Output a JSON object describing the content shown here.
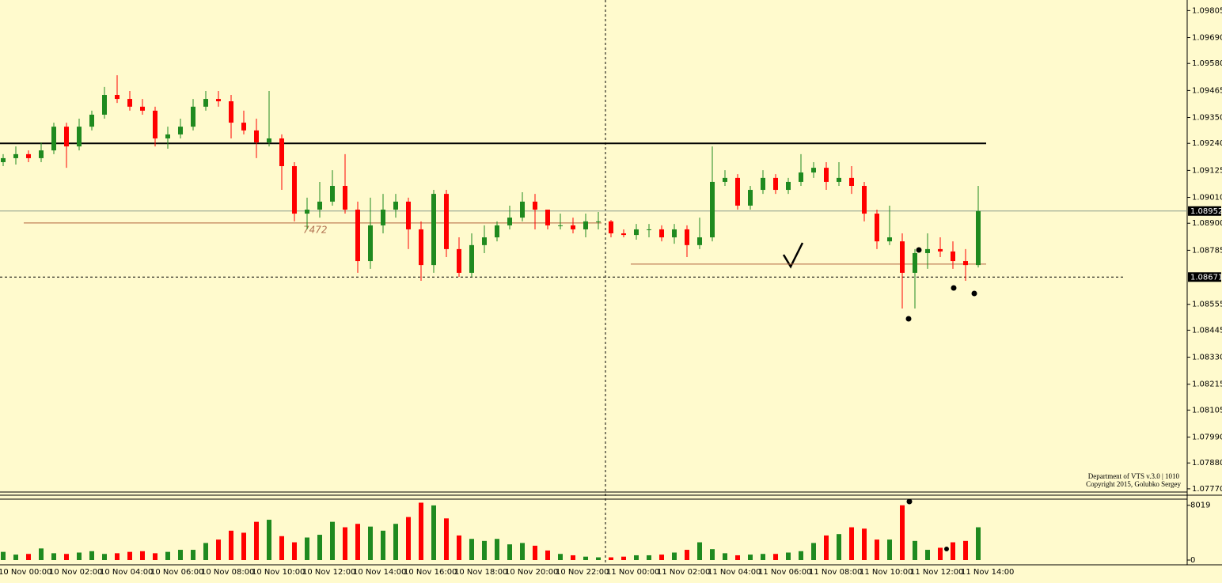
{
  "chart_data": {
    "type": "candlestick",
    "categories": [
      "10 Nov 00:00",
      null,
      null,
      null,
      "10 Nov 02:00",
      null,
      null,
      null,
      "10 Nov 04:00",
      null,
      null,
      null,
      "10 Nov 06:00",
      null,
      null,
      null,
      "10 Nov 08:00",
      null,
      null,
      null,
      "10 Nov 10:00",
      null,
      null,
      null,
      "10 Nov 12:00",
      null,
      null,
      null,
      "10 Nov 14:00",
      null,
      null,
      null,
      "10 Nov 16:00",
      null,
      null,
      null,
      "10 Nov 18:00",
      null,
      null,
      null,
      "10 Nov 20:00",
      null,
      null,
      null,
      "10 Nov 22:00",
      null,
      null,
      null,
      "11 Nov 00:00",
      null,
      null,
      null,
      "11 Nov 02:00",
      null,
      null,
      null,
      "11 Nov 04:00",
      null,
      null,
      null,
      "11 Nov 06:00",
      null,
      null,
      null,
      "11 Nov 08:00",
      null,
      null,
      null,
      "11 Nov 10:00",
      null,
      null,
      null,
      "11 Nov 12:00",
      null,
      null,
      null,
      "11 Nov 14:00",
      null
    ],
    "open": [
      1.0916,
      1.09177,
      1.09194,
      1.09177,
      1.0921,
      1.09311,
      1.09227,
      1.09311,
      1.09362,
      1.09446,
      1.09429,
      1.09396,
      1.09379,
      1.09261,
      1.09278,
      1.09311,
      1.09396,
      1.09429,
      1.09419,
      1.09328,
      1.09295,
      1.09244,
      1.09261,
      1.09143,
      1.08941,
      1.08958,
      1.08992,
      1.09059,
      1.08958,
      1.08739,
      1.08891,
      1.08958,
      1.08992,
      1.08874,
      1.08722,
      1.09025,
      1.0879,
      1.08689,
      1.08807,
      1.0884,
      1.08891,
      1.08924,
      1.08992,
      1.08958,
      1.08891,
      1.08891,
      1.08874,
      1.08908,
      1.08908,
      1.08857,
      1.0885,
      1.08874,
      1.08874,
      1.0884,
      1.08874,
      1.08807,
      1.0884,
      1.09076,
      1.09093,
      1.08975,
      1.09042,
      1.09093,
      1.09042,
      1.09076,
      1.09116,
      1.09136,
      1.09076,
      1.09093,
      1.09059,
      1.08941,
      1.08823,
      1.08823,
      1.08689,
      1.08773,
      1.0879,
      1.0878,
      1.08739,
      1.08722
    ],
    "high": [
      1.09194,
      1.09227,
      1.0921,
      1.09244,
      1.09328,
      1.09328,
      1.09345,
      1.09379,
      1.0948,
      1.0953,
      1.09463,
      1.09429,
      1.09396,
      1.09311,
      1.09345,
      1.09429,
      1.09463,
      1.09463,
      1.09446,
      1.09379,
      1.09345,
      1.09463,
      1.09278,
      1.0916,
      1.09009,
      1.09076,
      1.09126,
      1.09194,
      1.08992,
      1.09009,
      1.09025,
      1.09025,
      1.09009,
      1.08908,
      1.09042,
      1.09042,
      1.0884,
      1.08857,
      1.08891,
      1.08908,
      1.08975,
      1.09032,
      1.09025,
      1.08958,
      1.08941,
      1.08924,
      1.08941,
      1.08948,
      1.08914,
      1.08874,
      1.08897,
      1.08897,
      1.08891,
      1.08897,
      1.08891,
      1.08924,
      1.09227,
      1.09126,
      1.09109,
      1.09059,
      1.09126,
      1.09109,
      1.09093,
      1.09194,
      1.0916,
      1.0916,
      1.0916,
      1.09143,
      1.09076,
      1.08958,
      1.08975,
      1.08857,
      1.0879,
      1.08857,
      1.0884,
      1.08823,
      1.0879,
      1.09059
    ],
    "low": [
      1.09143,
      1.0915,
      1.0916,
      1.0916,
      1.09194,
      1.09136,
      1.0921,
      1.09295,
      1.09345,
      1.09412,
      1.09379,
      1.09362,
      1.09227,
      1.09217,
      1.09261,
      1.09295,
      1.09379,
      1.09396,
      1.09261,
      1.09278,
      1.09177,
      1.09227,
      1.09042,
      1.08908,
      1.08874,
      1.08924,
      1.08975,
      1.08941,
      1.08689,
      1.08706,
      1.08857,
      1.08924,
      1.0879,
      1.08655,
      1.08689,
      1.08756,
      1.08672,
      1.08672,
      1.08773,
      1.08823,
      1.08874,
      1.08908,
      1.08874,
      1.08874,
      1.08874,
      1.08857,
      1.0884,
      1.08874,
      1.0884,
      1.0884,
      1.0883,
      1.0884,
      1.08823,
      1.08813,
      1.08756,
      1.0879,
      1.08823,
      1.09059,
      1.08958,
      1.08958,
      1.09025,
      1.09025,
      1.09025,
      1.09059,
      1.09093,
      1.09042,
      1.09059,
      1.09025,
      1.08908,
      1.0879,
      1.08807,
      1.08537,
      1.08537,
      1.08706,
      1.08756,
      1.08706,
      1.08655,
      1.08712
    ],
    "close": [
      1.09177,
      1.09194,
      1.09177,
      1.0921,
      1.09311,
      1.09227,
      1.09311,
      1.09362,
      1.09446,
      1.09429,
      1.09396,
      1.09379,
      1.09261,
      1.09278,
      1.09311,
      1.09396,
      1.09429,
      1.09419,
      1.09328,
      1.09295,
      1.09244,
      1.09261,
      1.09143,
      1.08941,
      1.08958,
      1.08992,
      1.09059,
      1.08958,
      1.08739,
      1.08891,
      1.08958,
      1.08992,
      1.08874,
      1.08722,
      1.09025,
      1.0879,
      1.08689,
      1.08807,
      1.0884,
      1.08891,
      1.08924,
      1.08992,
      1.08958,
      1.08891,
      1.08891,
      1.08874,
      1.08908,
      1.08908,
      1.08857,
      1.0885,
      1.08874,
      1.08874,
      1.0884,
      1.08874,
      1.08807,
      1.0884,
      1.09076,
      1.09093,
      1.08975,
      1.09042,
      1.09093,
      1.09042,
      1.09076,
      1.09116,
      1.09136,
      1.09076,
      1.09093,
      1.09059,
      1.08941,
      1.08823,
      1.0884,
      1.08689,
      1.08773,
      1.0879,
      1.0878,
      1.08739,
      1.08722,
      1.08952
    ],
    "volume": [
      1200,
      800,
      900,
      1700,
      1000,
      900,
      1100,
      1300,
      900,
      1000,
      1200,
      1300,
      1000,
      1200,
      1500,
      1500,
      2500,
      3000,
      4300,
      4000,
      5600,
      5900,
      3500,
      2600,
      3300,
      3700,
      5600,
      4800,
      5300,
      4900,
      4300,
      5300,
      6300,
      8400,
      8000,
      6100,
      3600,
      3100,
      2800,
      3100,
      2300,
      2500,
      2100,
      1400,
      900,
      700,
      500,
      400,
      400,
      500,
      700,
      700,
      800,
      1100,
      1500,
      2600,
      1600,
      1000,
      700,
      800,
      900,
      900,
      1100,
      1300,
      2500,
      3600,
      3800,
      4800,
      4600,
      3000,
      3000,
      8019,
      2800,
      1500,
      1800,
      2600,
      2800,
      4800
    ],
    "colors": {
      "up": "#1f8a1f",
      "down": "#ff0000"
    },
    "ylim": [
      1.07763,
      1.0985
    ],
    "yticks": [
      1.09805,
      {
        "value": 1.0969,
        "label": "1.09690"
      },
      {
        "value": 1.0958,
        "label": "1.09580"
      },
      1.09465,
      {
        "value": 1.0935,
        "label": "1.09350"
      },
      {
        "value": 1.0924,
        "label": "1.09240"
      },
      1.09125,
      {
        "value": 1.0901,
        "label": "1.09010"
      },
      {
        "value": 1.089,
        "label": "1.08900"
      },
      1.08785,
      1.08555,
      1.08445,
      {
        "value": 1.0833,
        "label": "1.08330"
      },
      1.08215,
      1.08105,
      {
        "value": 1.0799,
        "label": "1.07990"
      },
      {
        "value": 1.0788,
        "label": "1.07880"
      },
      {
        "value": 1.0777,
        "label": "1.07770"
      }
    ],
    "volume_ylim": [
      0,
      8800
    ],
    "volume_yticks": [
      0,
      8019
    ],
    "current_price": 1.08952,
    "crosshair_price": 1.08671,
    "levels": [
      1.0924
    ],
    "poc_prices": [
      1.08901,
      1.08726
    ],
    "poc_label": 7472,
    "watermark": [
      "Department of VTS  v.3.0 | 1010",
      "Copyright 2015, Golubko Sergey"
    ]
  }
}
